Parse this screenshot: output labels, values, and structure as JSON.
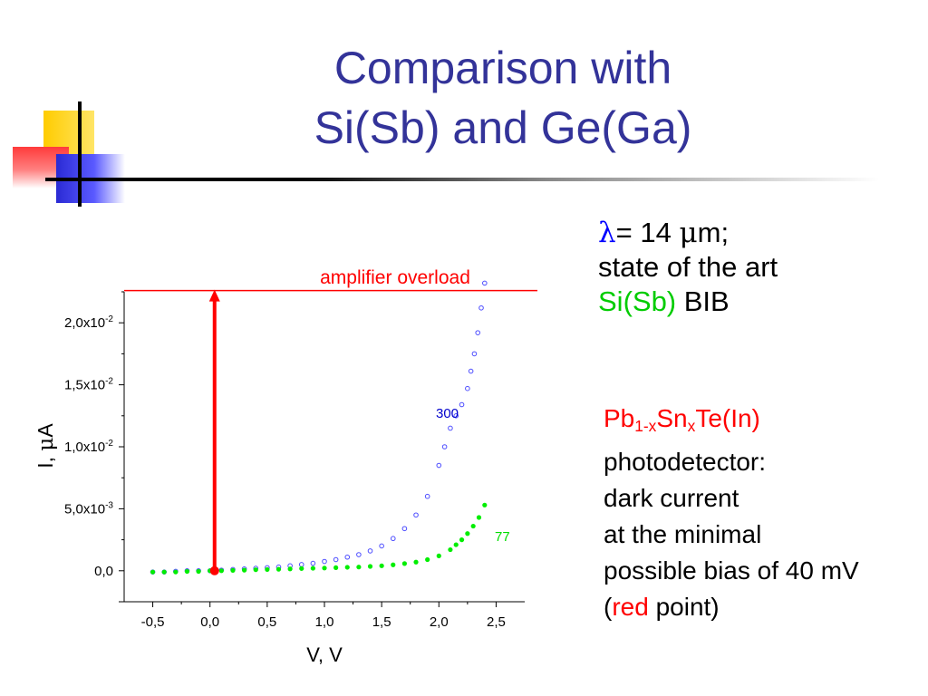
{
  "title": {
    "line1": "Comparison with",
    "line2": "Si(Sb) and Ge(Ga)"
  },
  "colors": {
    "title": "#333399",
    "overload": "#ff0000",
    "curve300": "#4d4dff",
    "curve77": "#00ee00",
    "arrow": "#ff0000"
  },
  "right_text": {
    "lambda_symbol": "λ",
    "lambda_value": "= 14 ",
    "mu_symbol": "μ",
    "lambda_unit": "m;",
    "line2": "state of the art",
    "sisb": "Si(Sb)",
    "bib": " BIB",
    "pb": "Pb",
    "pb_sub": "1-x",
    "sn": "Sn",
    "sn_sub": "x",
    "te": "Te(In)",
    "p1": "photodetector:",
    "p2": "dark current",
    "p3": "at the minimal",
    "p4": "possible bias of 40 mV",
    "p5_open": "(",
    "p5_red": "red",
    "p5_close": " point)"
  },
  "chart_data": {
    "type": "scatter",
    "xlabel": "V, V",
    "ylabel_prefix": "I, ",
    "ylabel_mu": "μ",
    "ylabel_suffix": "A",
    "xlim": [
      -0.75,
      2.75
    ],
    "ylim": [
      -0.0025,
      0.0225
    ],
    "x_ticks": [
      -0.5,
      0.0,
      0.5,
      1.0,
      1.5,
      2.0,
      2.5
    ],
    "x_tick_labels": [
      "-0,5",
      "0,0",
      "0,5",
      "1,0",
      "1,5",
      "2,0",
      "2,5"
    ],
    "y_ticks": [
      0,
      0.005,
      0.01,
      0.015,
      0.02
    ],
    "y_tick_labels": [
      {
        "base": "0,0",
        "exp": ""
      },
      {
        "base": "5,0x10",
        "exp": "-3"
      },
      {
        "base": "1,0x10",
        "exp": "-2"
      },
      {
        "base": "1,5x10",
        "exp": "-2"
      },
      {
        "base": "2,0x10",
        "exp": "-2"
      }
    ],
    "overload_level": 0.0226,
    "overload_label": "amplifier overload",
    "arrow_x": 0.04,
    "red_point": {
      "x": 0.04,
      "y": 0.0
    },
    "series": [
      {
        "name": "300",
        "x": [
          -0.5,
          -0.4,
          -0.3,
          -0.2,
          -0.1,
          0.0,
          0.1,
          0.2,
          0.3,
          0.4,
          0.5,
          0.6,
          0.7,
          0.8,
          0.9,
          1.0,
          1.1,
          1.2,
          1.3,
          1.4,
          1.5,
          1.6,
          1.7,
          1.8,
          1.9,
          2.0,
          2.05,
          2.1,
          2.15,
          2.2,
          2.25,
          2.28,
          2.31,
          2.34,
          2.37,
          2.4
        ],
        "y": [
          -0.0001,
          -0.0001,
          -5e-05,
          0.0,
          0.0,
          0.0,
          5e-05,
          0.0001,
          0.00015,
          0.0002,
          0.00025,
          0.0003,
          0.0004,
          0.0005,
          0.0006,
          0.00075,
          0.0009,
          0.0011,
          0.0013,
          0.0016,
          0.002,
          0.0026,
          0.0034,
          0.0045,
          0.006,
          0.0085,
          0.01,
          0.0115,
          0.0125,
          0.0134,
          0.0147,
          0.0161,
          0.0175,
          0.0192,
          0.0212,
          0.0232
        ]
      },
      {
        "name": "77",
        "x": [
          -0.5,
          -0.4,
          -0.3,
          -0.2,
          -0.1,
          0.0,
          0.1,
          0.2,
          0.3,
          0.4,
          0.5,
          0.6,
          0.7,
          0.8,
          0.9,
          1.0,
          1.1,
          1.2,
          1.3,
          1.4,
          1.5,
          1.6,
          1.7,
          1.8,
          1.9,
          2.0,
          2.1,
          2.15,
          2.2,
          2.25,
          2.3,
          2.35,
          2.4
        ],
        "y": [
          -0.0001,
          -0.0001,
          -0.0001,
          -5e-05,
          -5e-05,
          0.0,
          0.0,
          3e-05,
          5e-05,
          8e-05,
          0.0001,
          0.00012,
          0.00015,
          0.00018,
          0.0002,
          0.00022,
          0.00025,
          0.00028,
          0.0003,
          0.00035,
          0.0004,
          0.00048,
          0.00058,
          0.0007,
          0.0009,
          0.0012,
          0.0017,
          0.0021,
          0.0025,
          0.003,
          0.0036,
          0.0043,
          0.0053
        ]
      }
    ]
  }
}
